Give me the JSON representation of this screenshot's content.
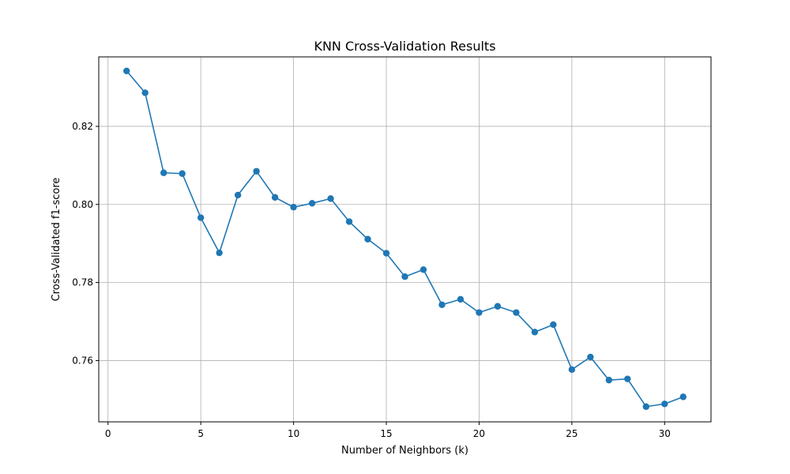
{
  "chart_data": {
    "type": "line",
    "title": "KNN Cross-Validation Results",
    "xlabel": "Number of Neighbors (k)",
    "ylabel": "Cross-Validated f1-score",
    "xlim": [
      -0.5,
      32.5
    ],
    "ylim": [
      0.7443,
      0.8378
    ],
    "xticks": [
      0,
      5,
      10,
      15,
      20,
      25,
      30
    ],
    "xtick_labels": [
      "0",
      "5",
      "10",
      "15",
      "20",
      "25",
      "30"
    ],
    "yticks": [
      0.76,
      0.78,
      0.8,
      0.82
    ],
    "ytick_labels": [
      "0.76",
      "0.78",
      "0.80",
      "0.82"
    ],
    "grid": true,
    "marker": "circle",
    "series": [
      {
        "color": "#1f77b4",
        "x": [
          1,
          2,
          3,
          4,
          5,
          6,
          7,
          8,
          9,
          10,
          11,
          12,
          13,
          14,
          15,
          16,
          17,
          18,
          19,
          20,
          21,
          22,
          23,
          24,
          25,
          26,
          27,
          28,
          29,
          30,
          31
        ],
        "values": [
          0.8342,
          0.8286,
          0.8081,
          0.8079,
          0.7966,
          0.7876,
          0.8024,
          0.8085,
          0.8018,
          0.7993,
          0.8003,
          0.8015,
          0.7956,
          0.7911,
          0.7875,
          0.7815,
          0.7833,
          0.7743,
          0.7757,
          0.7723,
          0.7739,
          0.7723,
          0.7673,
          0.7692,
          0.7577,
          0.7609,
          0.755,
          0.7553,
          0.7482,
          0.7489,
          0.7507
        ]
      }
    ]
  }
}
